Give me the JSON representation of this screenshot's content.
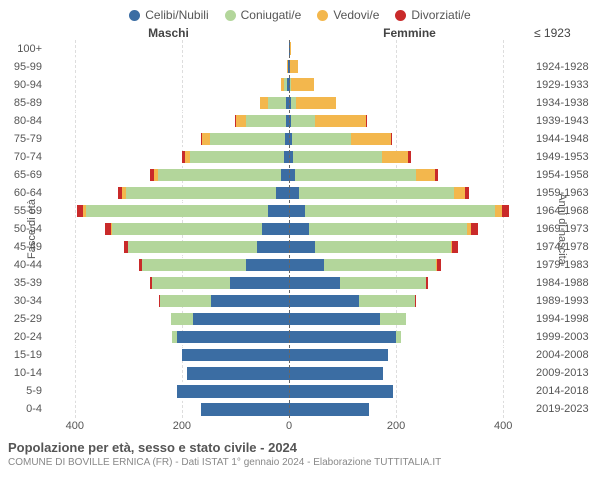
{
  "legend": [
    {
      "label": "Celibi/Nubili",
      "color": "#3b6da3"
    },
    {
      "label": "Coniugati/e",
      "color": "#b3d69b"
    },
    {
      "label": "Vedovi/e",
      "color": "#f3b74d"
    },
    {
      "label": "Divorziati/e",
      "color": "#c92a2a"
    }
  ],
  "headers": {
    "male": "Maschi",
    "female": "Femmine"
  },
  "axis_titles": {
    "left": "Fasce di età",
    "right": "Anni di nascita"
  },
  "age_labels": [
    "100+",
    "95-99",
    "90-94",
    "85-89",
    "80-84",
    "75-79",
    "70-74",
    "65-69",
    "60-64",
    "55-59",
    "50-54",
    "45-49",
    "40-44",
    "35-39",
    "30-34",
    "25-29",
    "20-24",
    "15-19",
    "10-14",
    "5-9",
    "0-4"
  ],
  "birth_labels": [
    "≤ 1923",
    "1924-1928",
    "1929-1933",
    "1934-1938",
    "1939-1943",
    "1944-1948",
    "1949-1953",
    "1954-1958",
    "1959-1963",
    "1964-1968",
    "1969-1973",
    "1974-1978",
    "1979-1983",
    "1984-1988",
    "1989-1993",
    "1994-1998",
    "1999-2003",
    "2004-2008",
    "2009-2013",
    "2014-2018",
    "2019-2023"
  ],
  "x_max": 450,
  "x_ticks": [
    400,
    200,
    0,
    200,
    400
  ],
  "colors": {
    "celibi": "#3b6da3",
    "coniugati": "#b3d69b",
    "vedovi": "#f3b74d",
    "divorziati": "#c92a2a",
    "grid": "#dddddd",
    "center": "#666666",
    "bg": "#ffffff"
  },
  "male": [
    {
      "c": 0,
      "m": 0,
      "w": 0,
      "d": 0
    },
    {
      "c": 2,
      "m": 0,
      "w": 2,
      "d": 0
    },
    {
      "c": 3,
      "m": 6,
      "w": 6,
      "d": 0
    },
    {
      "c": 5,
      "m": 35,
      "w": 15,
      "d": 0
    },
    {
      "c": 6,
      "m": 75,
      "w": 18,
      "d": 2
    },
    {
      "c": 8,
      "m": 140,
      "w": 15,
      "d": 2
    },
    {
      "c": 10,
      "m": 175,
      "w": 10,
      "d": 4
    },
    {
      "c": 15,
      "m": 230,
      "w": 8,
      "d": 6
    },
    {
      "c": 25,
      "m": 280,
      "w": 6,
      "d": 8
    },
    {
      "c": 40,
      "m": 340,
      "w": 4,
      "d": 12
    },
    {
      "c": 50,
      "m": 280,
      "w": 2,
      "d": 12
    },
    {
      "c": 60,
      "m": 240,
      "w": 0,
      "d": 8
    },
    {
      "c": 80,
      "m": 195,
      "w": 0,
      "d": 6
    },
    {
      "c": 110,
      "m": 145,
      "w": 0,
      "d": 4
    },
    {
      "c": 145,
      "m": 95,
      "w": 0,
      "d": 2
    },
    {
      "c": 180,
      "m": 40,
      "w": 0,
      "d": 0
    },
    {
      "c": 210,
      "m": 8,
      "w": 0,
      "d": 0
    },
    {
      "c": 200,
      "m": 0,
      "w": 0,
      "d": 0
    },
    {
      "c": 190,
      "m": 0,
      "w": 0,
      "d": 0
    },
    {
      "c": 210,
      "m": 0,
      "w": 0,
      "d": 0
    },
    {
      "c": 165,
      "m": 0,
      "w": 0,
      "d": 0
    }
  ],
  "female": [
    {
      "c": 1,
      "m": 0,
      "w": 2,
      "d": 0
    },
    {
      "c": 2,
      "m": 0,
      "w": 15,
      "d": 0
    },
    {
      "c": 2,
      "m": 2,
      "w": 42,
      "d": 0
    },
    {
      "c": 3,
      "m": 10,
      "w": 75,
      "d": 0
    },
    {
      "c": 4,
      "m": 45,
      "w": 95,
      "d": 2
    },
    {
      "c": 6,
      "m": 110,
      "w": 75,
      "d": 2
    },
    {
      "c": 8,
      "m": 165,
      "w": 50,
      "d": 4
    },
    {
      "c": 12,
      "m": 225,
      "w": 35,
      "d": 6
    },
    {
      "c": 18,
      "m": 290,
      "w": 20,
      "d": 8
    },
    {
      "c": 30,
      "m": 355,
      "w": 12,
      "d": 14
    },
    {
      "c": 38,
      "m": 295,
      "w": 6,
      "d": 14
    },
    {
      "c": 48,
      "m": 255,
      "w": 2,
      "d": 10
    },
    {
      "c": 65,
      "m": 210,
      "w": 2,
      "d": 6
    },
    {
      "c": 95,
      "m": 160,
      "w": 0,
      "d": 4
    },
    {
      "c": 130,
      "m": 105,
      "w": 0,
      "d": 2
    },
    {
      "c": 170,
      "m": 48,
      "w": 0,
      "d": 0
    },
    {
      "c": 200,
      "m": 10,
      "w": 0,
      "d": 0
    },
    {
      "c": 185,
      "m": 0,
      "w": 0,
      "d": 0
    },
    {
      "c": 175,
      "m": 0,
      "w": 0,
      "d": 0
    },
    {
      "c": 195,
      "m": 0,
      "w": 0,
      "d": 0
    },
    {
      "c": 150,
      "m": 0,
      "w": 0,
      "d": 0
    }
  ],
  "footer": {
    "title": "Popolazione per età, sesso e stato civile - 2024",
    "sub": "COMUNE DI BOVILLE ERNICA (FR) - Dati ISTAT 1° gennaio 2024 - Elaborazione TUTTITALIA.IT"
  }
}
